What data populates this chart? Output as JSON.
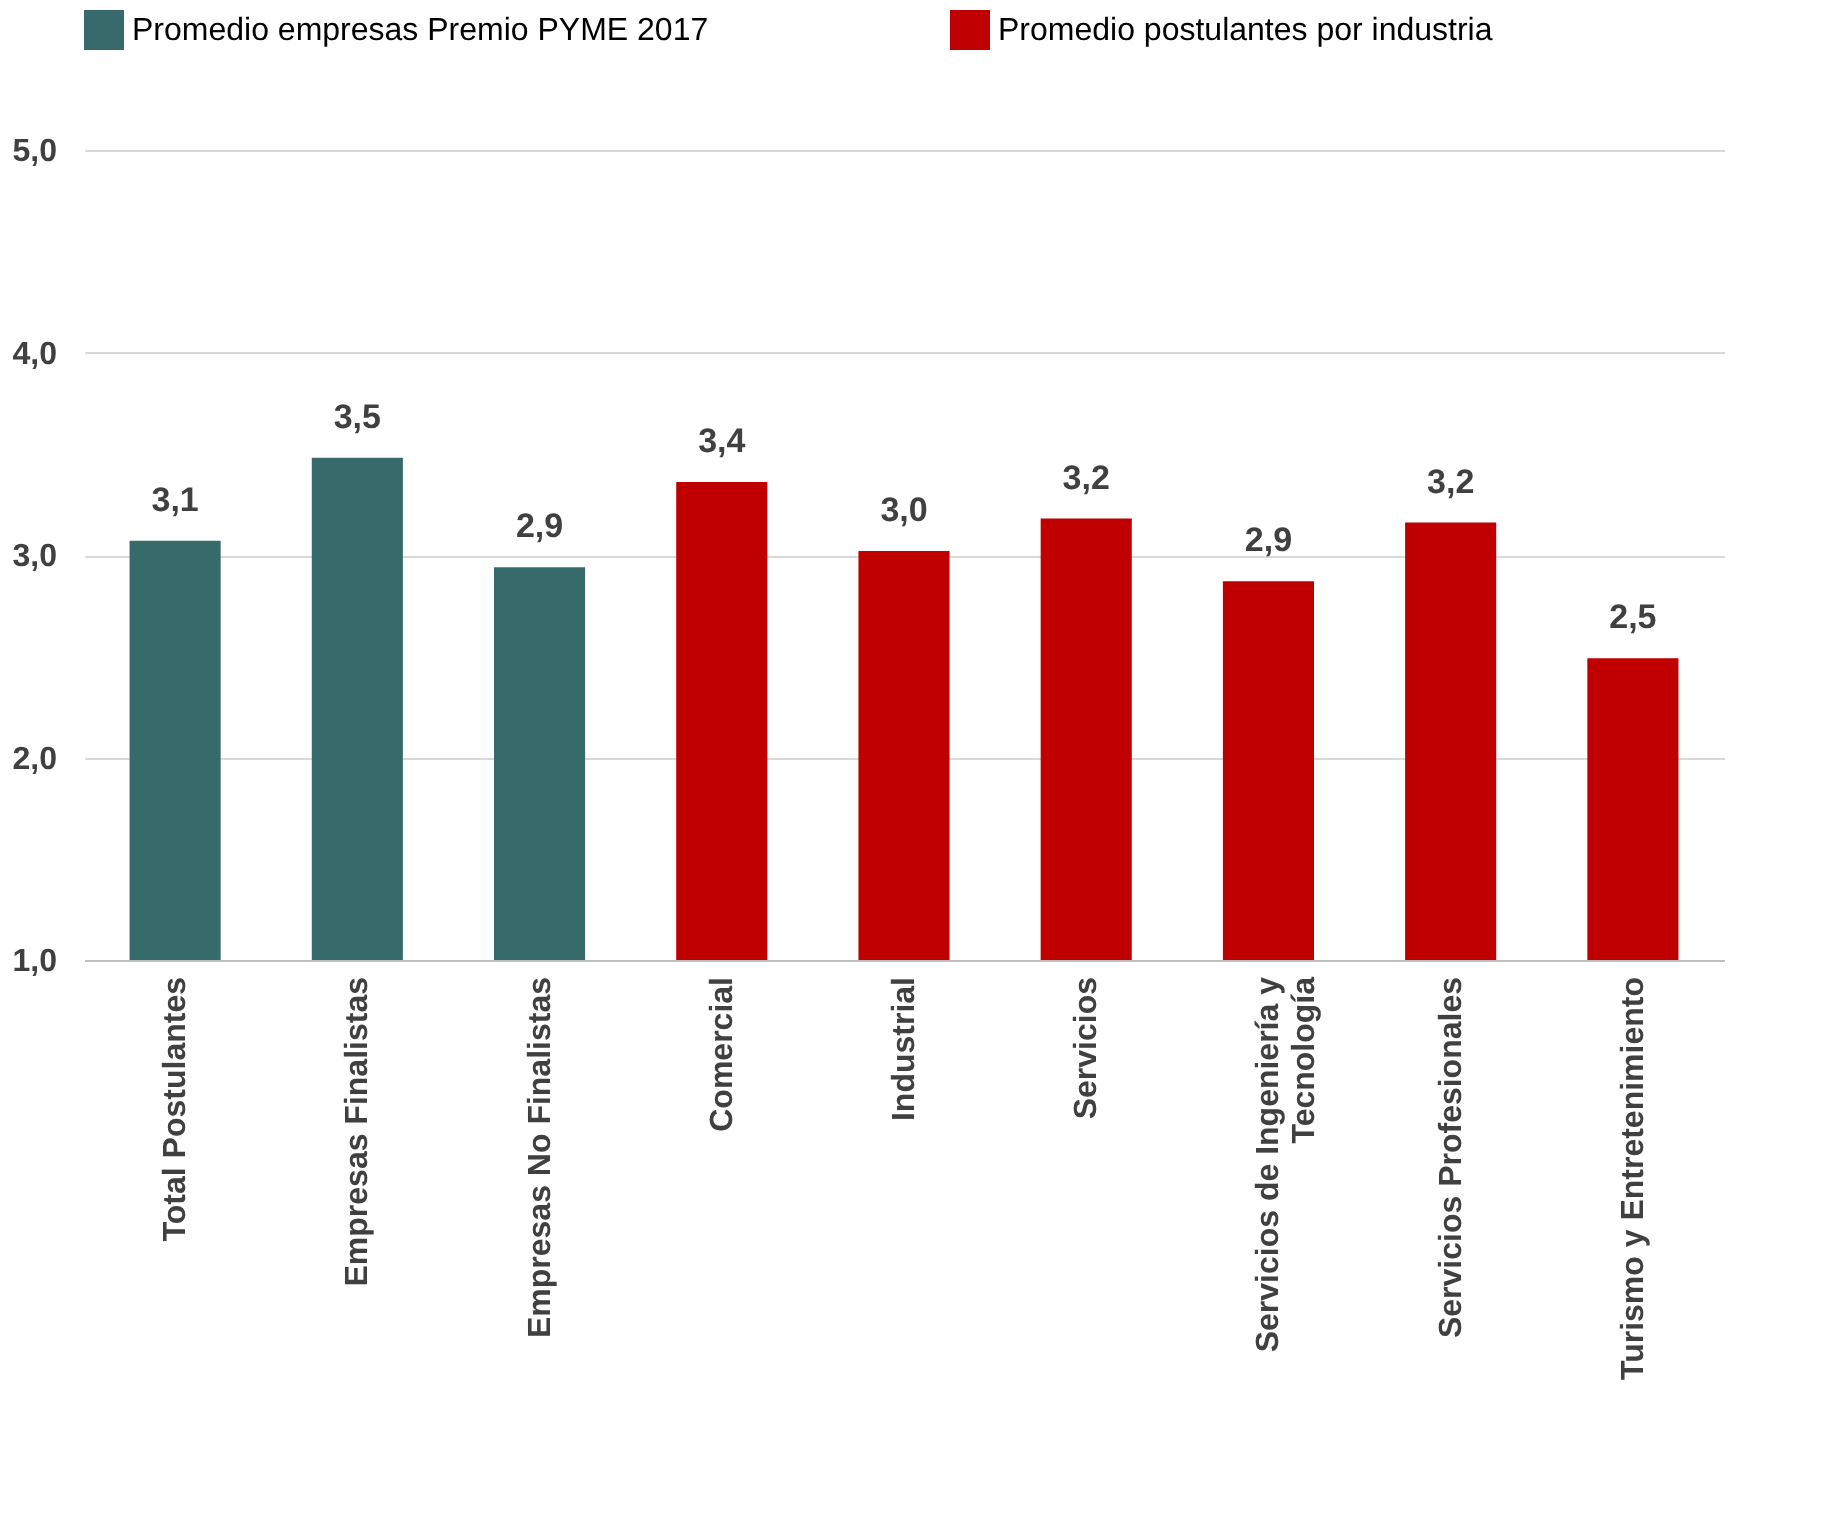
{
  "chart_data": {
    "type": "bar",
    "categories": [
      "Total Postulantes",
      "Empresas Finalistas",
      "Empresas No Finalistas",
      "Comercial",
      "Industrial",
      "Servicios",
      "Servicios de Ingeniería y Tecnología",
      "Servicios Profesionales",
      "Turismo y Entretenimiento"
    ],
    "series": [
      {
        "name": "Promedio empresas Premio PYME 2017",
        "color": "#376b6b",
        "values": [
          3.07,
          3.48,
          2.94,
          null,
          null,
          null,
          null,
          null,
          null
        ],
        "value_labels": [
          "3,1",
          "3,5",
          "2,9",
          null,
          null,
          null,
          null,
          null,
          null
        ]
      },
      {
        "name": "Promedio postulantes por industria",
        "color": "#c00000",
        "values": [
          null,
          null,
          null,
          3.36,
          3.02,
          3.18,
          2.87,
          3.16,
          2.49
        ],
        "value_labels": [
          null,
          null,
          null,
          "3,4",
          "3,0",
          "3,2",
          "2,9",
          "3,2",
          "2,5"
        ]
      }
    ],
    "ylim": [
      1,
      5
    ],
    "yticks": [
      {
        "value": 1,
        "label": "1,0"
      },
      {
        "value": 2,
        "label": "2,0"
      },
      {
        "value": 3,
        "label": "3,0"
      },
      {
        "value": 4,
        "label": "4,0"
      },
      {
        "value": 5,
        "label": "5,0"
      }
    ],
    "grid": "y",
    "legend": "top"
  }
}
